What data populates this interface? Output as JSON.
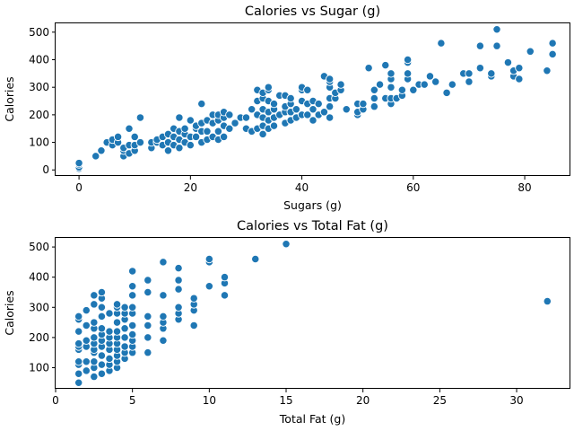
{
  "colors": {
    "point": "#1f77b4",
    "background": "#ffffff"
  },
  "chart_data": [
    {
      "type": "scatter",
      "title": "Calories vs Sugar (g)",
      "xlabel": "Sugars (g)",
      "ylabel": "Calories",
      "xlim": [
        -4.2,
        88.2
      ],
      "ylim": [
        -22,
        532
      ],
      "xticks": [
        0,
        20,
        40,
        60,
        80
      ],
      "yticks": [
        0,
        100,
        200,
        300,
        400,
        500
      ],
      "grid": false,
      "legend": "none",
      "points": [
        [
          0,
          5
        ],
        [
          0,
          10
        ],
        [
          0,
          20
        ],
        [
          0,
          25
        ],
        [
          3,
          50
        ],
        [
          4,
          70
        ],
        [
          5,
          100
        ],
        [
          6,
          90
        ],
        [
          6,
          110
        ],
        [
          7,
          100
        ],
        [
          7,
          120
        ],
        [
          8,
          50
        ],
        [
          8,
          70
        ],
        [
          8,
          80
        ],
        [
          9,
          60
        ],
        [
          9,
          90
        ],
        [
          9,
          150
        ],
        [
          10,
          70
        ],
        [
          10,
          90
        ],
        [
          10,
          120
        ],
        [
          11,
          100
        ],
        [
          11,
          190
        ],
        [
          13,
          80
        ],
        [
          13,
          100
        ],
        [
          14,
          100
        ],
        [
          14,
          110
        ],
        [
          15,
          90
        ],
        [
          15,
          120
        ],
        [
          16,
          70
        ],
        [
          16,
          100
        ],
        [
          16,
          130
        ],
        [
          17,
          90
        ],
        [
          17,
          120
        ],
        [
          17,
          150
        ],
        [
          18,
          80
        ],
        [
          18,
          110
        ],
        [
          18,
          140
        ],
        [
          18,
          190
        ],
        [
          19,
          100
        ],
        [
          19,
          130
        ],
        [
          19,
          150
        ],
        [
          20,
          90
        ],
        [
          20,
          120
        ],
        [
          20,
          180
        ],
        [
          21,
          120
        ],
        [
          21,
          150
        ],
        [
          21,
          160
        ],
        [
          22,
          100
        ],
        [
          22,
          140
        ],
        [
          22,
          170
        ],
        [
          22,
          240
        ],
        [
          23,
          110
        ],
        [
          23,
          140
        ],
        [
          23,
          180
        ],
        [
          24,
          120
        ],
        [
          24,
          170
        ],
        [
          24,
          200
        ],
        [
          25,
          110
        ],
        [
          25,
          140
        ],
        [
          25,
          180
        ],
        [
          25,
          200
        ],
        [
          26,
          120
        ],
        [
          26,
          160
        ],
        [
          26,
          190
        ],
        [
          26,
          210
        ],
        [
          27,
          150
        ],
        [
          27,
          200
        ],
        [
          28,
          170
        ],
        [
          29,
          190
        ],
        [
          30,
          150
        ],
        [
          30,
          190
        ],
        [
          31,
          140
        ],
        [
          31,
          220
        ],
        [
          32,
          150
        ],
        [
          32,
          200
        ],
        [
          32,
          250
        ],
        [
          32,
          290
        ],
        [
          33,
          130
        ],
        [
          33,
          160
        ],
        [
          33,
          190
        ],
        [
          33,
          220
        ],
        [
          33,
          260
        ],
        [
          33,
          280
        ],
        [
          34,
          150
        ],
        [
          34,
          180
        ],
        [
          34,
          210
        ],
        [
          34,
          250
        ],
        [
          34,
          290
        ],
        [
          34,
          300
        ],
        [
          35,
          160
        ],
        [
          35,
          190
        ],
        [
          35,
          220
        ],
        [
          35,
          240
        ],
        [
          36,
          200
        ],
        [
          36,
          270
        ],
        [
          37,
          170
        ],
        [
          37,
          210
        ],
        [
          37,
          230
        ],
        [
          37,
          270
        ],
        [
          38,
          180
        ],
        [
          38,
          210
        ],
        [
          38,
          240
        ],
        [
          38,
          260
        ],
        [
          39,
          190
        ],
        [
          39,
          220
        ],
        [
          40,
          200
        ],
        [
          40,
          250
        ],
        [
          40,
          290
        ],
        [
          40,
          300
        ],
        [
          41,
          200
        ],
        [
          41,
          240
        ],
        [
          41,
          290
        ],
        [
          42,
          180
        ],
        [
          42,
          220
        ],
        [
          42,
          250
        ],
        [
          43,
          200
        ],
        [
          43,
          240
        ],
        [
          44,
          210
        ],
        [
          44,
          340
        ],
        [
          45,
          190
        ],
        [
          45,
          230
        ],
        [
          45,
          260
        ],
        [
          45,
          300
        ],
        [
          45,
          320
        ],
        [
          45,
          330
        ],
        [
          46,
          260
        ],
        [
          46,
          280
        ],
        [
          47,
          290
        ],
        [
          47,
          310
        ],
        [
          48,
          220
        ],
        [
          50,
          200
        ],
        [
          50,
          210
        ],
        [
          50,
          240
        ],
        [
          51,
          220
        ],
        [
          51,
          240
        ],
        [
          52,
          370
        ],
        [
          53,
          230
        ],
        [
          53,
          260
        ],
        [
          53,
          290
        ],
        [
          54,
          310
        ],
        [
          55,
          260
        ],
        [
          55,
          380
        ],
        [
          56,
          240
        ],
        [
          56,
          260
        ],
        [
          56,
          300
        ],
        [
          56,
          330
        ],
        [
          56,
          350
        ],
        [
          57,
          260
        ],
        [
          58,
          270
        ],
        [
          58,
          290
        ],
        [
          59,
          330
        ],
        [
          59,
          350
        ],
        [
          59,
          390
        ],
        [
          59,
          400
        ],
        [
          60,
          290
        ],
        [
          61,
          310
        ],
        [
          62,
          310
        ],
        [
          63,
          340
        ],
        [
          64,
          320
        ],
        [
          65,
          460
        ],
        [
          66,
          280
        ],
        [
          67,
          310
        ],
        [
          69,
          350
        ],
        [
          70,
          320
        ],
        [
          70,
          350
        ],
        [
          72,
          370
        ],
        [
          72,
          450
        ],
        [
          74,
          340
        ],
        [
          74,
          350
        ],
        [
          75,
          450
        ],
        [
          75,
          510
        ],
        [
          77,
          390
        ],
        [
          78,
          340
        ],
        [
          78,
          360
        ],
        [
          79,
          330
        ],
        [
          79,
          370
        ],
        [
          81,
          430
        ],
        [
          84,
          360
        ],
        [
          85,
          420
        ],
        [
          85,
          460
        ]
      ]
    },
    {
      "type": "scatter",
      "title": "Calories vs Total Fat (g)",
      "xlabel": "Total Fat (g)",
      "ylabel": "Calories",
      "xlim": [
        0,
        33.5
      ],
      "ylim": [
        30,
        530
      ],
      "xticks": [
        0,
        5,
        10,
        15,
        20,
        25,
        30
      ],
      "yticks": [
        100,
        200,
        300,
        400,
        500
      ],
      "grid": false,
      "legend": "none",
      "points": [
        [
          1.5,
          50
        ],
        [
          1.5,
          80
        ],
        [
          1.5,
          110
        ],
        [
          1.5,
          120
        ],
        [
          1.5,
          160
        ],
        [
          1.5,
          170
        ],
        [
          1.5,
          180
        ],
        [
          1.5,
          220
        ],
        [
          1.5,
          260
        ],
        [
          1.5,
          270
        ],
        [
          2,
          90
        ],
        [
          2,
          120
        ],
        [
          2,
          170
        ],
        [
          2,
          190
        ],
        [
          2,
          240
        ],
        [
          2,
          290
        ],
        [
          2.5,
          70
        ],
        [
          2.5,
          100
        ],
        [
          2.5,
          120
        ],
        [
          2.5,
          150
        ],
        [
          2.5,
          160
        ],
        [
          2.5,
          180
        ],
        [
          2.5,
          200
        ],
        [
          2.5,
          230
        ],
        [
          2.5,
          250
        ],
        [
          2.5,
          310
        ],
        [
          2.5,
          340
        ],
        [
          3,
          80
        ],
        [
          3,
          110
        ],
        [
          3,
          140
        ],
        [
          3,
          170
        ],
        [
          3,
          190
        ],
        [
          3,
          210
        ],
        [
          3,
          230
        ],
        [
          3,
          270
        ],
        [
          3,
          300
        ],
        [
          3,
          330
        ],
        [
          3,
          350
        ],
        [
          3.5,
          90
        ],
        [
          3.5,
          110
        ],
        [
          3.5,
          130
        ],
        [
          3.5,
          160
        ],
        [
          3.5,
          180
        ],
        [
          3.5,
          200
        ],
        [
          3.5,
          220
        ],
        [
          3.5,
          280
        ],
        [
          4,
          100
        ],
        [
          4,
          120
        ],
        [
          4,
          140
        ],
        [
          4,
          160
        ],
        [
          4,
          180
        ],
        [
          4,
          200
        ],
        [
          4,
          220
        ],
        [
          4,
          250
        ],
        [
          4,
          280
        ],
        [
          4,
          300
        ],
        [
          4,
          310
        ],
        [
          4.5,
          130
        ],
        [
          4.5,
          150
        ],
        [
          4.5,
          170
        ],
        [
          4.5,
          200
        ],
        [
          4.5,
          230
        ],
        [
          4.5,
          260
        ],
        [
          4.5,
          280
        ],
        [
          4.5,
          300
        ],
        [
          5,
          150
        ],
        [
          5,
          170
        ],
        [
          5,
          190
        ],
        [
          5,
          210
        ],
        [
          5,
          240
        ],
        [
          5,
          280
        ],
        [
          5,
          300
        ],
        [
          5,
          340
        ],
        [
          5,
          370
        ],
        [
          5,
          420
        ],
        [
          6,
          150
        ],
        [
          6,
          200
        ],
        [
          6,
          240
        ],
        [
          6,
          270
        ],
        [
          6,
          350
        ],
        [
          6,
          390
        ],
        [
          7,
          190
        ],
        [
          7,
          230
        ],
        [
          7,
          250
        ],
        [
          7,
          270
        ],
        [
          7,
          340
        ],
        [
          7,
          450
        ],
        [
          8,
          260
        ],
        [
          8,
          280
        ],
        [
          8,
          300
        ],
        [
          8,
          360
        ],
        [
          8,
          390
        ],
        [
          8,
          430
        ],
        [
          9,
          240
        ],
        [
          9,
          290
        ],
        [
          9,
          310
        ],
        [
          9,
          330
        ],
        [
          10,
          370
        ],
        [
          10,
          450
        ],
        [
          10,
          460
        ],
        [
          11,
          340
        ],
        [
          11,
          380
        ],
        [
          11,
          400
        ],
        [
          13,
          460
        ],
        [
          15,
          510
        ],
        [
          32,
          320
        ]
      ]
    }
  ]
}
